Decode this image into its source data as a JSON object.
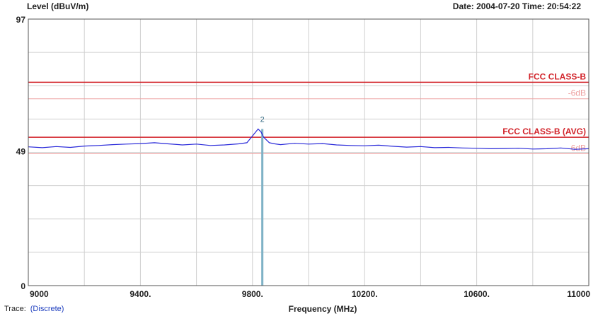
{
  "header": {
    "ylabel": "Level (dBuV/m)",
    "date_time": "Date: 2004-07-20  Time: 20:54:22"
  },
  "footer": {
    "trace_label": "Trace:",
    "trace_value": "(Discrete)"
  },
  "colors": {
    "limit_line": "#d2232a",
    "margin_line": "#eda2a2",
    "trace": "#2929d9",
    "marker": "#7fb2c6",
    "grid": "#cfcfcf"
  },
  "chart_data": {
    "type": "line",
    "xlabel": "Frequency (MHz)",
    "ylabel": "Level (dBuV/m)",
    "xlim": [
      9000,
      11000
    ],
    "ylim": [
      0,
      97
    ],
    "x_ticks": [
      9000,
      9400,
      9800,
      10200,
      10600,
      11000
    ],
    "x_tick_labels": [
      "9000",
      "9400.",
      "9800.",
      "10200.",
      "10600.",
      "11000"
    ],
    "y_ticks": [
      0,
      49,
      97
    ],
    "y_tick_labels": [
      "0",
      "49",
      "97"
    ],
    "grid": true,
    "limits": [
      {
        "label": "FCC CLASS-B",
        "level": 74
      },
      {
        "label": "-6dB",
        "level": 68
      },
      {
        "label": "FCC CLASS-B (AVG)",
        "level": 54
      },
      {
        "label": "-6dB",
        "level": 48
      }
    ],
    "series": [
      {
        "x": [
          9000,
          9050,
          9100,
          9150,
          9200,
          9250,
          9300,
          9350,
          9400,
          9450,
          9500,
          9550,
          9600,
          9650,
          9700,
          9750,
          9780,
          9800,
          9820,
          9830,
          9840,
          9860,
          9880,
          9900,
          9950,
          10000,
          10050,
          10100,
          10150,
          10200,
          10250,
          10300,
          10350,
          10400,
          10450,
          10500,
          10550,
          10600,
          10650,
          10700,
          10750,
          10800,
          10850,
          10900,
          10950,
          11000
        ],
        "y": [
          50.5,
          50.2,
          50.6,
          50.3,
          50.8,
          51.0,
          51.3,
          51.5,
          51.7,
          52.0,
          51.6,
          51.2,
          51.5,
          51.0,
          51.2,
          51.6,
          52.0,
          54.5,
          57.0,
          56.0,
          54.0,
          52.0,
          51.6,
          51.3,
          51.8,
          51.5,
          51.7,
          51.2,
          51.0,
          50.9,
          51.1,
          50.7,
          50.4,
          50.6,
          50.2,
          50.3,
          50.1,
          50.0,
          49.8,
          49.9,
          50.0,
          49.7,
          49.8,
          50.1,
          49.6,
          49.8
        ]
      }
    ],
    "markers": [
      {
        "label": "2",
        "x": 9835,
        "y": 57.0
      }
    ]
  }
}
